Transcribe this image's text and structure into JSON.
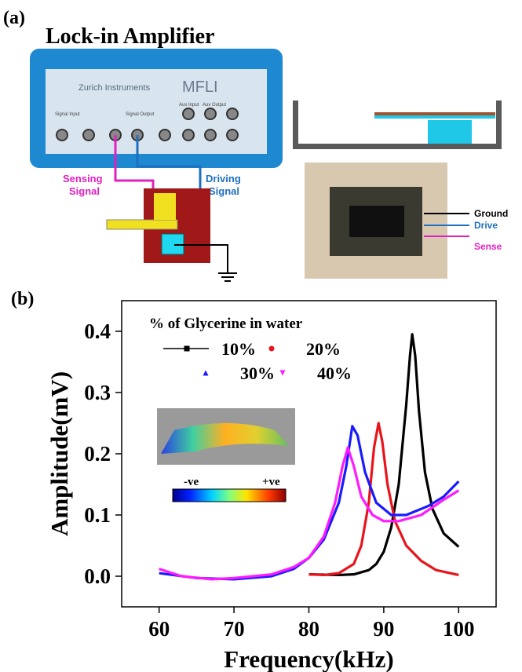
{
  "panel_a": {
    "label": "(a)",
    "title": "Lock-in Amplifier",
    "instrument": {
      "brand": "Zurich Instruments",
      "model": "MFLI",
      "ports": [
        "Signal Input",
        "Signal Output",
        "Aux Input",
        "Aux Output"
      ]
    },
    "sensing": [
      "Sensing",
      "Signal"
    ],
    "driving": [
      "Driving",
      "Signal"
    ],
    "connections": [
      "Ground",
      "Drive",
      "Sense"
    ]
  },
  "chart_data": {
    "type": "line",
    "label": "(b)",
    "x_label": "Frequency(kHz)",
    "y_label": "Amplitude(mV)",
    "legend_title": "% of Glycerine in water",
    "xlim": [
      55,
      105
    ],
    "xticks": [
      60,
      70,
      80,
      90,
      100
    ],
    "ylim": [
      -0.05,
      0.45
    ],
    "yticks": [
      {
        "value": 0,
        "label": "0.0"
      },
      0.1,
      0.2,
      0.3,
      0.4
    ],
    "series": [
      {
        "name": "10%",
        "color": "#000000",
        "marker": "square",
        "x": [
          80,
          84,
          86,
          88,
          89,
          90,
          91,
          92,
          93,
          93.5,
          93.8,
          94.2,
          94.7,
          95.5,
          96.5,
          98,
          100
        ],
        "values": [
          0.003,
          0.002,
          0.003,
          0.01,
          0.02,
          0.04,
          0.08,
          0.15,
          0.28,
          0.36,
          0.395,
          0.36,
          0.27,
          0.17,
          0.11,
          0.07,
          0.048
        ]
      },
      {
        "name": "20%",
        "color": "#e8141c",
        "marker": "circle",
        "x": [
          80,
          82,
          84,
          86,
          87,
          88,
          88.7,
          89.3,
          89.8,
          90.5,
          91.5,
          93,
          95,
          97,
          100
        ],
        "values": [
          0.003,
          0.002,
          0.005,
          0.02,
          0.05,
          0.12,
          0.21,
          0.25,
          0.22,
          0.15,
          0.09,
          0.05,
          0.025,
          0.01,
          0.002
        ]
      },
      {
        "name": "30%",
        "color": "#1a1aff",
        "marker": "triangle",
        "x": [
          60,
          65,
          70,
          75,
          78,
          80,
          82,
          84,
          85,
          85.8,
          86.5,
          87.5,
          89,
          91,
          93,
          96,
          98,
          100
        ],
        "values": [
          0.005,
          -0.003,
          -0.005,
          0.0,
          0.012,
          0.03,
          0.06,
          0.12,
          0.18,
          0.245,
          0.23,
          0.17,
          0.12,
          0.1,
          0.1,
          0.115,
          0.13,
          0.155
        ]
      },
      {
        "name": "40%",
        "color": "#ff1aff",
        "marker": "triangle-down",
        "x": [
          60,
          63,
          67,
          70,
          75,
          78,
          80,
          82,
          83.5,
          84.5,
          85.2,
          86,
          87,
          88.5,
          90,
          92,
          95,
          98,
          100
        ],
        "values": [
          0.012,
          0.0,
          -0.005,
          -0.003,
          0.003,
          0.015,
          0.03,
          0.065,
          0.12,
          0.18,
          0.21,
          0.18,
          0.13,
          0.1,
          0.09,
          0.09,
          0.1,
          0.125,
          0.14
        ]
      }
    ],
    "inset_labels": [
      "-ve",
      "+ve"
    ]
  }
}
